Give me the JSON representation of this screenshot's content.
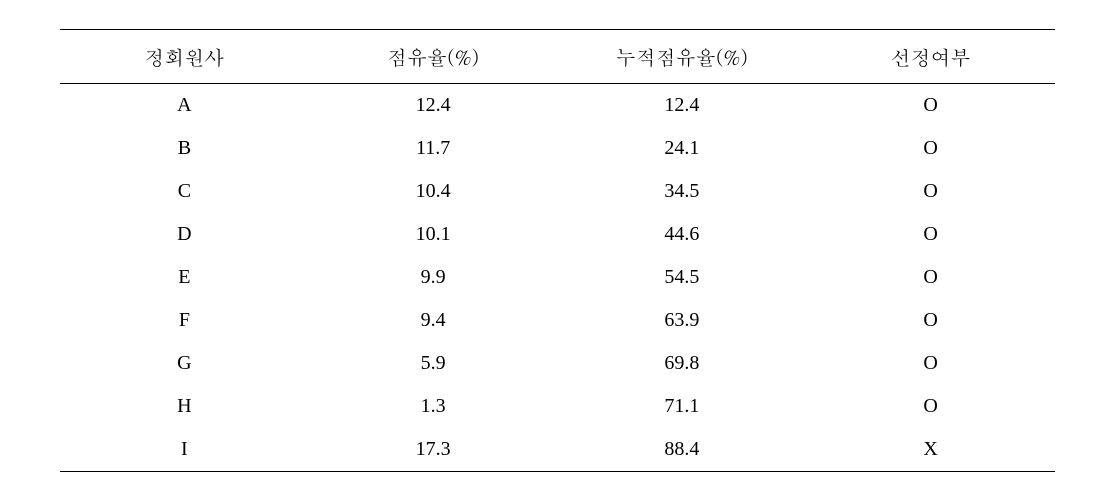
{
  "table": {
    "columns": [
      {
        "key": "member",
        "label": "정회원사",
        "width_pct": 25
      },
      {
        "key": "share",
        "label": "점유율(%)",
        "width_pct": 25
      },
      {
        "key": "cumulative",
        "label": "누적점유율(%)",
        "width_pct": 25
      },
      {
        "key": "selected",
        "label": "선정여부",
        "width_pct": 25
      }
    ],
    "rows": [
      {
        "member": "A",
        "share": "12.4",
        "cumulative": "12.4",
        "selected": "O"
      },
      {
        "member": "B",
        "share": "11.7",
        "cumulative": "24.1",
        "selected": "O"
      },
      {
        "member": "C",
        "share": "10.4",
        "cumulative": "34.5",
        "selected": "O"
      },
      {
        "member": "D",
        "share": "10.1",
        "cumulative": "44.6",
        "selected": "O"
      },
      {
        "member": "E",
        "share": "9.9",
        "cumulative": "54.5",
        "selected": "O"
      },
      {
        "member": "F",
        "share": "9.4",
        "cumulative": "63.9",
        "selected": "O"
      },
      {
        "member": "G",
        "share": "5.9",
        "cumulative": "69.8",
        "selected": "O"
      },
      {
        "member": "H",
        "share": "1.3",
        "cumulative": "71.1",
        "selected": "O"
      },
      {
        "member": "I",
        "share": "17.3",
        "cumulative": "88.4",
        "selected": "X"
      }
    ],
    "styling": {
      "border_color": "#000000",
      "top_bottom_border_width": 1.5,
      "header_border_width": 1,
      "background_color": "#ffffff",
      "text_color": "#000000",
      "header_fontsize": 20,
      "cell_fontsize": 20,
      "row_padding_vertical": 10,
      "text_align": "center",
      "font_family_header": "Batang, serif",
      "font_family_body": "Times New Roman, serif"
    }
  }
}
